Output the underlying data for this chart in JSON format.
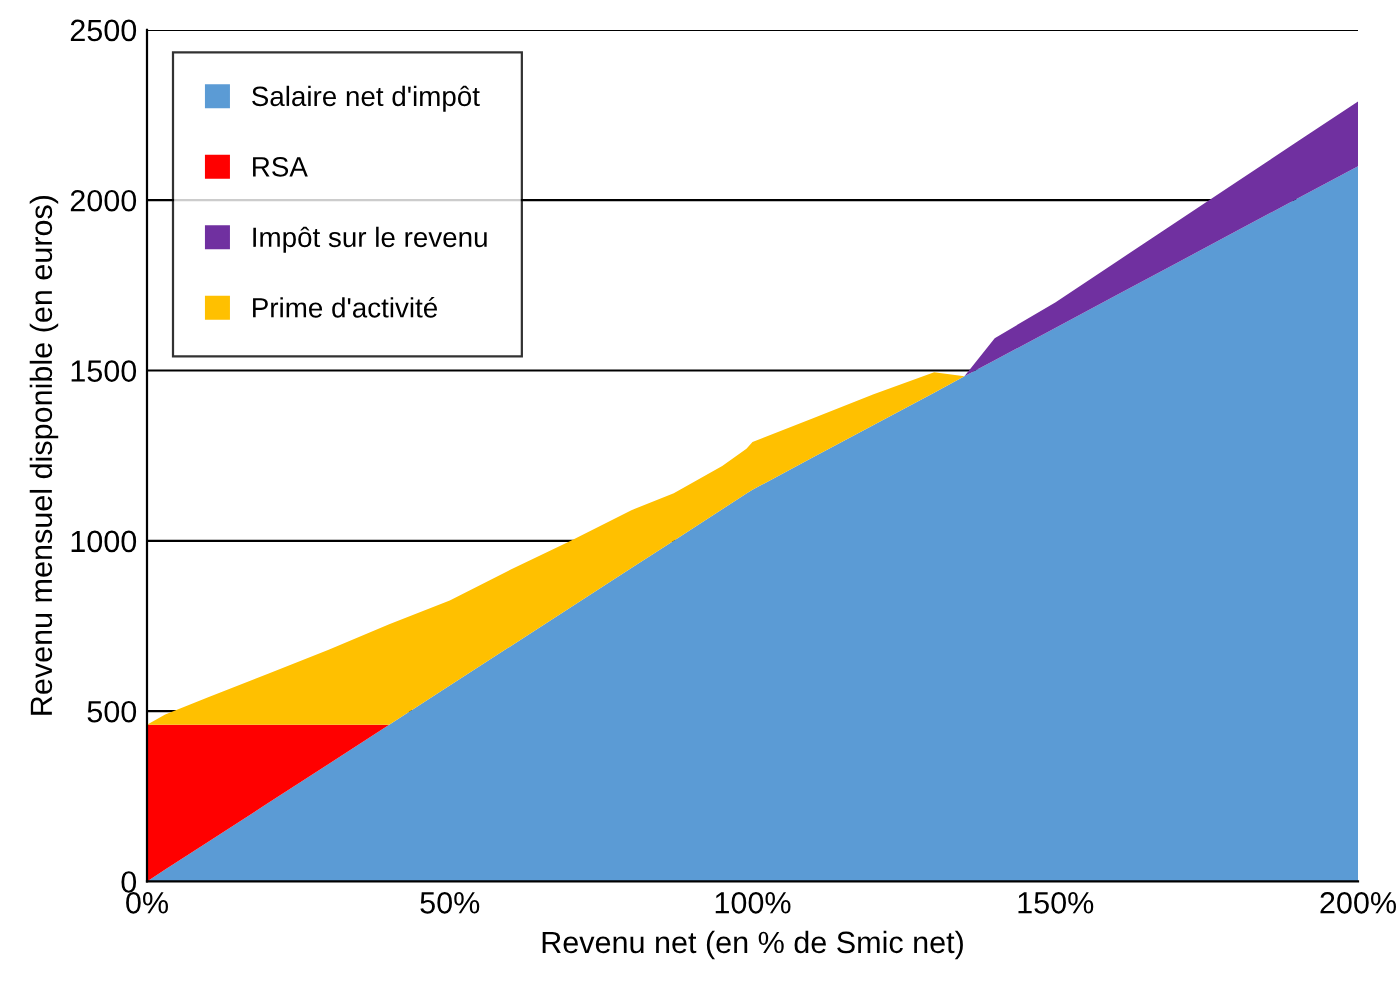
{
  "chart_data": {
    "type": "area",
    "stacked": true,
    "xlabel": "Revenu net (en % de Smic net)",
    "ylabel": "Revenu mensuel disponible (en euros)",
    "x": [
      0,
      3,
      10,
      20,
      30,
      40,
      50,
      60,
      70,
      80,
      87,
      95,
      99,
      100,
      110,
      120,
      130,
      135,
      140,
      150,
      160,
      170,
      180,
      190,
      200
    ],
    "series": [
      {
        "name": "Salaire net d'impôt",
        "color": "#5b9bd5",
        "values": [
          0,
          35,
          115,
          230,
          345,
          460,
          575,
          690,
          805,
          920,
          1000,
          1093,
          1139,
          1150,
          1245,
          1340,
          1435,
          1483,
          1530,
          1625,
          1720,
          1815,
          1910,
          2005,
          2100
        ]
      },
      {
        "name": "RSA",
        "color": "#ff0000",
        "values": [
          460,
          425,
          345,
          230,
          115,
          0,
          null,
          null,
          null,
          null,
          null,
          null,
          null,
          null,
          null,
          null,
          null,
          null,
          null,
          null,
          null,
          null,
          null,
          null,
          null
        ]
      },
      {
        "name": "Impôt sur le revenu",
        "color": "#7030a0",
        "values": [
          null,
          null,
          null,
          null,
          null,
          null,
          null,
          null,
          null,
          null,
          null,
          null,
          null,
          null,
          null,
          null,
          null,
          0,
          65,
          75,
          98,
          121,
          144,
          167,
          190
        ]
      },
      {
        "name": "Prime d'activité",
        "color": "#ffc000",
        "values": [
          0,
          30,
          80,
          150,
          220,
          295,
          250,
          225,
          195,
          170,
          140,
          127,
          131,
          140,
          115,
          90,
          60,
          0,
          null,
          null,
          null,
          null,
          null,
          null,
          null
        ]
      }
    ],
    "xlim": [
      0,
      200
    ],
    "xticks": [
      {
        "value": 0,
        "label": "0%"
      },
      {
        "value": 50,
        "label": "50%"
      },
      {
        "value": 100,
        "label": "100%"
      },
      {
        "value": 150,
        "label": "150%"
      },
      {
        "value": 200,
        "label": "200%"
      }
    ],
    "ylim": [
      0,
      2500
    ],
    "yticks": [
      0,
      500,
      1000,
      1500,
      2000,
      2500
    ],
    "grid": "y",
    "legend": "top left"
  }
}
